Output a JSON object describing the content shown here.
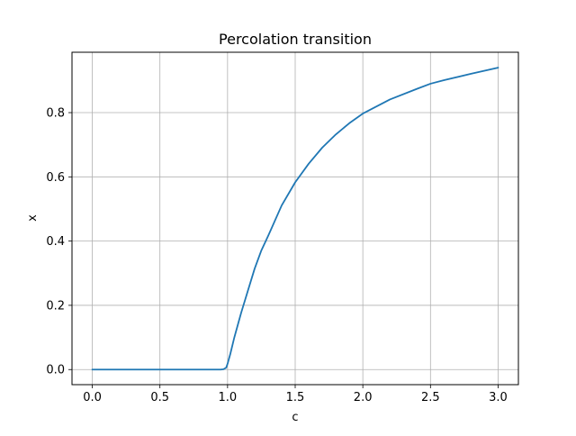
{
  "chart_data": {
    "type": "line",
    "title": "Percolation transition",
    "xlabel": "c",
    "ylabel": "x",
    "xlim": [
      -0.15,
      3.15
    ],
    "ylim": [
      -0.047,
      0.988
    ],
    "xticks": [
      0.0,
      0.5,
      1.0,
      1.5,
      2.0,
      2.5,
      3.0
    ],
    "xtick_labels": [
      "0.0",
      "0.5",
      "1.0",
      "1.5",
      "2.0",
      "2.5",
      "3.0"
    ],
    "yticks": [
      0.0,
      0.2,
      0.4,
      0.6,
      0.8
    ],
    "ytick_labels": [
      "0.0",
      "0.2",
      "0.4",
      "0.6",
      "0.8"
    ],
    "grid": true,
    "line_color": "#1f77b4",
    "series": [
      {
        "x": [
          0.0,
          0.2,
          0.4,
          0.6,
          0.8,
          0.9,
          0.95,
          0.97,
          0.99,
          1.0,
          1.02,
          1.05,
          1.1,
          1.15,
          1.2,
          1.25,
          1.3,
          1.4,
          1.5,
          1.6,
          1.7,
          1.8,
          1.9,
          2.0,
          2.2,
          2.4,
          2.5,
          2.6,
          2.8,
          3.0
        ],
        "y": [
          0.0,
          0.0,
          0.0,
          0.0,
          0.0,
          0.0,
          0.0,
          0.001,
          0.006,
          0.018,
          0.048,
          0.1,
          0.176,
          0.245,
          0.314,
          0.371,
          0.416,
          0.511,
          0.583,
          0.641,
          0.691,
          0.732,
          0.767,
          0.797,
          0.841,
          0.874,
          0.89,
          0.901,
          0.921,
          0.94
        ]
      }
    ]
  }
}
